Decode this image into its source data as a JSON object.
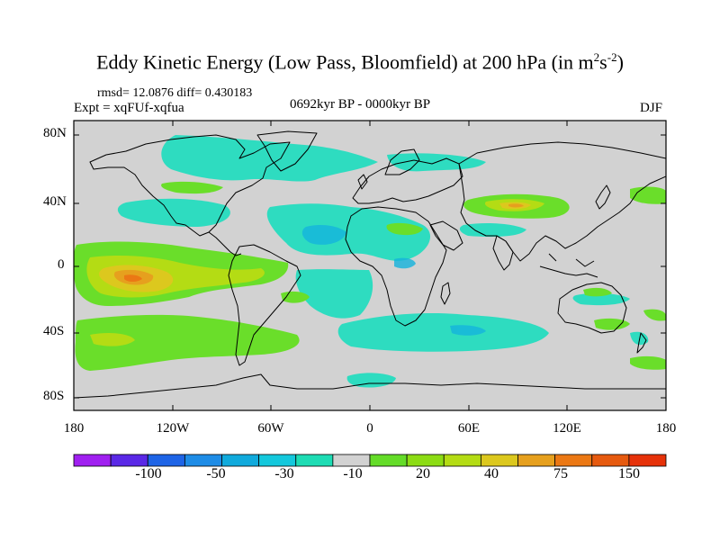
{
  "title": {
    "prefix": "Eddy Kinetic Energy (Low Pass, Bloomfield) at 200 hPa (in m",
    "sup1": "2",
    "mid": "s",
    "sup2": "-2",
    "suffix": ")"
  },
  "stats": "rmsd= 12.0876 diff= 0.430183",
  "experiment": "Expt = xqFUf-xqfua",
  "period": "0692kyr BP - 0000kyr BP",
  "season": "DJF",
  "lat_labels": [
    "80N",
    "40N",
    "0",
    "40S",
    "80S"
  ],
  "lon_labels": [
    "180",
    "120W",
    "60W",
    "0",
    "60E",
    "120E",
    "180"
  ],
  "colorbar": {
    "colors": [
      "#a020f0",
      "#5a28e6",
      "#1e64e6",
      "#1e8ce6",
      "#10aadc",
      "#14c8dc",
      "#1edcb4",
      "#d2d2d2",
      "#64dc28",
      "#8cdc14",
      "#b4dc14",
      "#dcc81e",
      "#e6a01e",
      "#eb7814",
      "#e65a0f",
      "#e6320a"
    ],
    "labels": [
      "-100",
      "-50",
      "-30",
      "-10",
      "20",
      "40",
      "75",
      "150"
    ]
  },
  "colors": {
    "background": "#d2d2d2",
    "coast": "#000000"
  }
}
